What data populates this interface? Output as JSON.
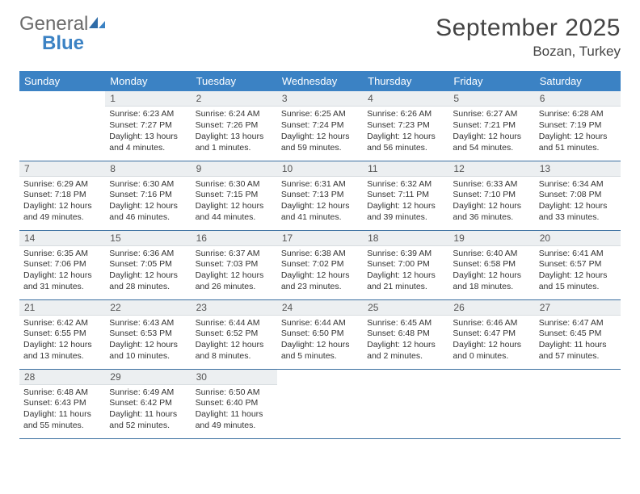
{
  "brand": {
    "part1": "General",
    "part2": "Blue"
  },
  "title": "September 2025",
  "location": "Bozan, Turkey",
  "header_bg": "#3b82c4",
  "header_fg": "#ffffff",
  "dayhead_bg": "#eceff1",
  "row_border": "#3b6fa0",
  "weekdays": [
    "Sunday",
    "Monday",
    "Tuesday",
    "Wednesday",
    "Thursday",
    "Friday",
    "Saturday"
  ],
  "weeks": [
    [
      null,
      {
        "n": "1",
        "sr": "6:23 AM",
        "ss": "7:27 PM",
        "dl": "13 hours and 4 minutes."
      },
      {
        "n": "2",
        "sr": "6:24 AM",
        "ss": "7:26 PM",
        "dl": "13 hours and 1 minutes."
      },
      {
        "n": "3",
        "sr": "6:25 AM",
        "ss": "7:24 PM",
        "dl": "12 hours and 59 minutes."
      },
      {
        "n": "4",
        "sr": "6:26 AM",
        "ss": "7:23 PM",
        "dl": "12 hours and 56 minutes."
      },
      {
        "n": "5",
        "sr": "6:27 AM",
        "ss": "7:21 PM",
        "dl": "12 hours and 54 minutes."
      },
      {
        "n": "6",
        "sr": "6:28 AM",
        "ss": "7:19 PM",
        "dl": "12 hours and 51 minutes."
      }
    ],
    [
      {
        "n": "7",
        "sr": "6:29 AM",
        "ss": "7:18 PM",
        "dl": "12 hours and 49 minutes."
      },
      {
        "n": "8",
        "sr": "6:30 AM",
        "ss": "7:16 PM",
        "dl": "12 hours and 46 minutes."
      },
      {
        "n": "9",
        "sr": "6:30 AM",
        "ss": "7:15 PM",
        "dl": "12 hours and 44 minutes."
      },
      {
        "n": "10",
        "sr": "6:31 AM",
        "ss": "7:13 PM",
        "dl": "12 hours and 41 minutes."
      },
      {
        "n": "11",
        "sr": "6:32 AM",
        "ss": "7:11 PM",
        "dl": "12 hours and 39 minutes."
      },
      {
        "n": "12",
        "sr": "6:33 AM",
        "ss": "7:10 PM",
        "dl": "12 hours and 36 minutes."
      },
      {
        "n": "13",
        "sr": "6:34 AM",
        "ss": "7:08 PM",
        "dl": "12 hours and 33 minutes."
      }
    ],
    [
      {
        "n": "14",
        "sr": "6:35 AM",
        "ss": "7:06 PM",
        "dl": "12 hours and 31 minutes."
      },
      {
        "n": "15",
        "sr": "6:36 AM",
        "ss": "7:05 PM",
        "dl": "12 hours and 28 minutes."
      },
      {
        "n": "16",
        "sr": "6:37 AM",
        "ss": "7:03 PM",
        "dl": "12 hours and 26 minutes."
      },
      {
        "n": "17",
        "sr": "6:38 AM",
        "ss": "7:02 PM",
        "dl": "12 hours and 23 minutes."
      },
      {
        "n": "18",
        "sr": "6:39 AM",
        "ss": "7:00 PM",
        "dl": "12 hours and 21 minutes."
      },
      {
        "n": "19",
        "sr": "6:40 AM",
        "ss": "6:58 PM",
        "dl": "12 hours and 18 minutes."
      },
      {
        "n": "20",
        "sr": "6:41 AM",
        "ss": "6:57 PM",
        "dl": "12 hours and 15 minutes."
      }
    ],
    [
      {
        "n": "21",
        "sr": "6:42 AM",
        "ss": "6:55 PM",
        "dl": "12 hours and 13 minutes."
      },
      {
        "n": "22",
        "sr": "6:43 AM",
        "ss": "6:53 PM",
        "dl": "12 hours and 10 minutes."
      },
      {
        "n": "23",
        "sr": "6:44 AM",
        "ss": "6:52 PM",
        "dl": "12 hours and 8 minutes."
      },
      {
        "n": "24",
        "sr": "6:44 AM",
        "ss": "6:50 PM",
        "dl": "12 hours and 5 minutes."
      },
      {
        "n": "25",
        "sr": "6:45 AM",
        "ss": "6:48 PM",
        "dl": "12 hours and 2 minutes."
      },
      {
        "n": "26",
        "sr": "6:46 AM",
        "ss": "6:47 PM",
        "dl": "12 hours and 0 minutes."
      },
      {
        "n": "27",
        "sr": "6:47 AM",
        "ss": "6:45 PM",
        "dl": "11 hours and 57 minutes."
      }
    ],
    [
      {
        "n": "28",
        "sr": "6:48 AM",
        "ss": "6:43 PM",
        "dl": "11 hours and 55 minutes."
      },
      {
        "n": "29",
        "sr": "6:49 AM",
        "ss": "6:42 PM",
        "dl": "11 hours and 52 minutes."
      },
      {
        "n": "30",
        "sr": "6:50 AM",
        "ss": "6:40 PM",
        "dl": "11 hours and 49 minutes."
      },
      null,
      null,
      null,
      null
    ]
  ],
  "labels": {
    "sunrise": "Sunrise:",
    "sunset": "Sunset:",
    "daylight": "Daylight:"
  }
}
